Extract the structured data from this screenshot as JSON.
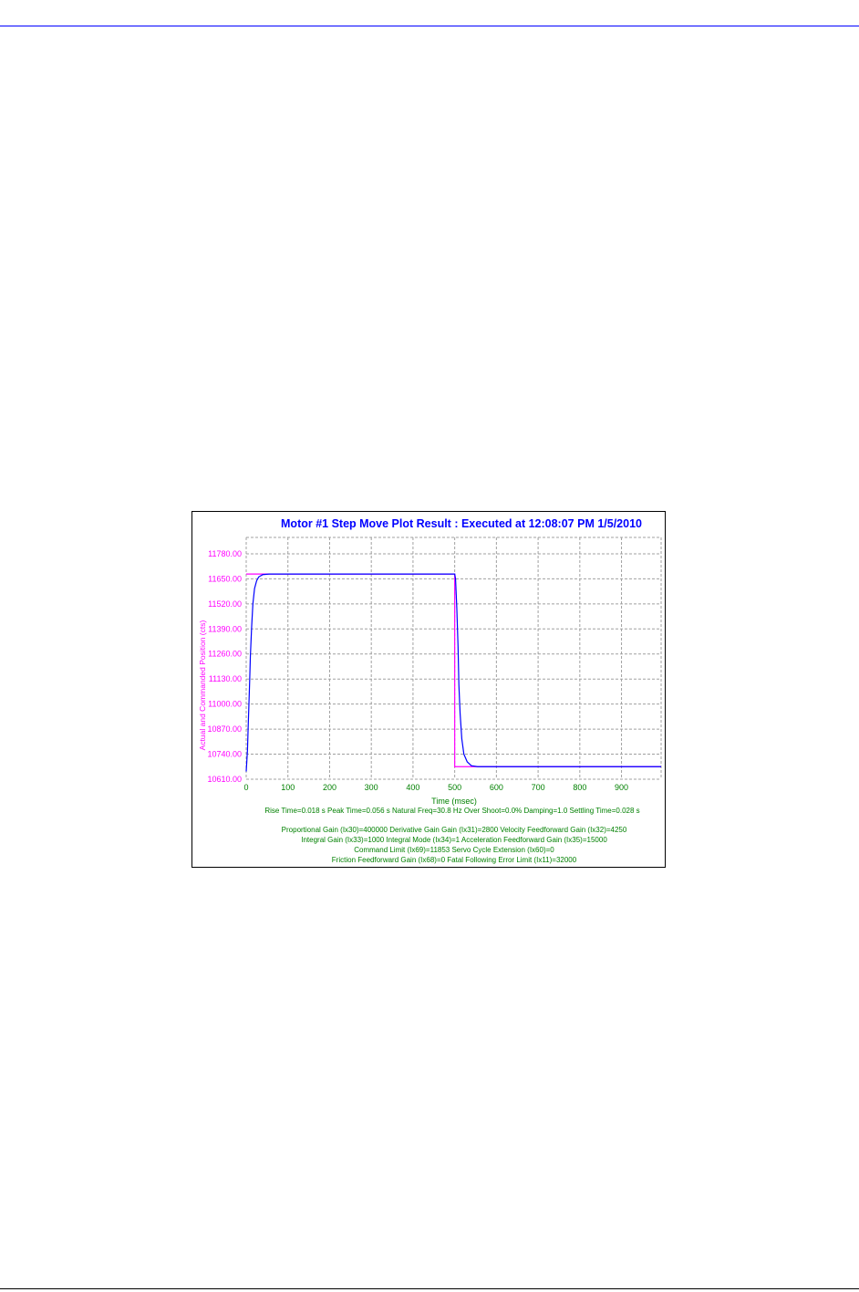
{
  "colors": {
    "page_rule": "#0000ff",
    "actual": "#0000ff",
    "commanded": "#ff00ff",
    "axis_text_y": "#ff00ff",
    "axis_text_x": "#008000",
    "grid": "#a0a0a0"
  },
  "chart_data": {
    "type": "line",
    "title": "Motor #1 Step Move Plot Result : Executed at 12:08:07 PM 1/5/2010",
    "xlabel": "Time (msec)",
    "ylabel": "Actual and Commanded Position (cts)",
    "xlim": [
      0,
      995
    ],
    "ylim": [
      10610,
      11865
    ],
    "grid": true,
    "x_ticks": [
      "0",
      "100",
      "200",
      "300",
      "400",
      "500",
      "600",
      "700",
      "800",
      "900"
    ],
    "y_ticks": [
      "10610.00",
      "10740.00",
      "10870.00",
      "11000.00",
      "11130.00",
      "11260.00",
      "11390.00",
      "11520.00",
      "11650.00",
      "11780.00"
    ],
    "series": [
      {
        "key": "commanded",
        "color": "#ff00ff",
        "points": [
          [
            0,
            11675
          ],
          [
            500,
            11675
          ],
          [
            500,
            10675
          ],
          [
            995,
            10675
          ]
        ]
      },
      {
        "key": "actual",
        "color": "#0000ff",
        "points": [
          [
            0,
            10650
          ],
          [
            3,
            10760
          ],
          [
            5,
            10900
          ],
          [
            8,
            11100
          ],
          [
            10,
            11250
          ],
          [
            13,
            11400
          ],
          [
            16,
            11520
          ],
          [
            20,
            11600
          ],
          [
            25,
            11640
          ],
          [
            30,
            11660
          ],
          [
            40,
            11672
          ],
          [
            55,
            11675
          ],
          [
            500,
            11675
          ],
          [
            502,
            11650
          ],
          [
            505,
            11500
          ],
          [
            508,
            11300
          ],
          [
            510,
            11100
          ],
          [
            513,
            10950
          ],
          [
            517,
            10820
          ],
          [
            522,
            10740
          ],
          [
            530,
            10700
          ],
          [
            540,
            10680
          ],
          [
            555,
            10675
          ],
          [
            995,
            10675
          ]
        ]
      }
    ],
    "results_line": "Rise Time=0.018 s  Peak Time=0.056 s  Natural Freq=30.8 Hz  Over Shoot=0.0%  Damping=1.0  Settling Time=0.028 s",
    "gain_lines": [
      "Proportional Gain (Ix30)=400000  Derivative Gain Gain (Ix31)=2800  Velocity Feedforward Gain (Ix32)=4250",
      "Integral Gain (Ix33)=1000  Integral Mode (Ix34)=1   Acceleration Feedforward Gain (Ix35)=15000",
      "Command Limit (Ix69)=11853  Servo Cycle Extension (Ix60)=0",
      "Friction Feedforward Gain (Ix68)=0  Fatal Following Error Limit (Ix11)=32000"
    ]
  }
}
